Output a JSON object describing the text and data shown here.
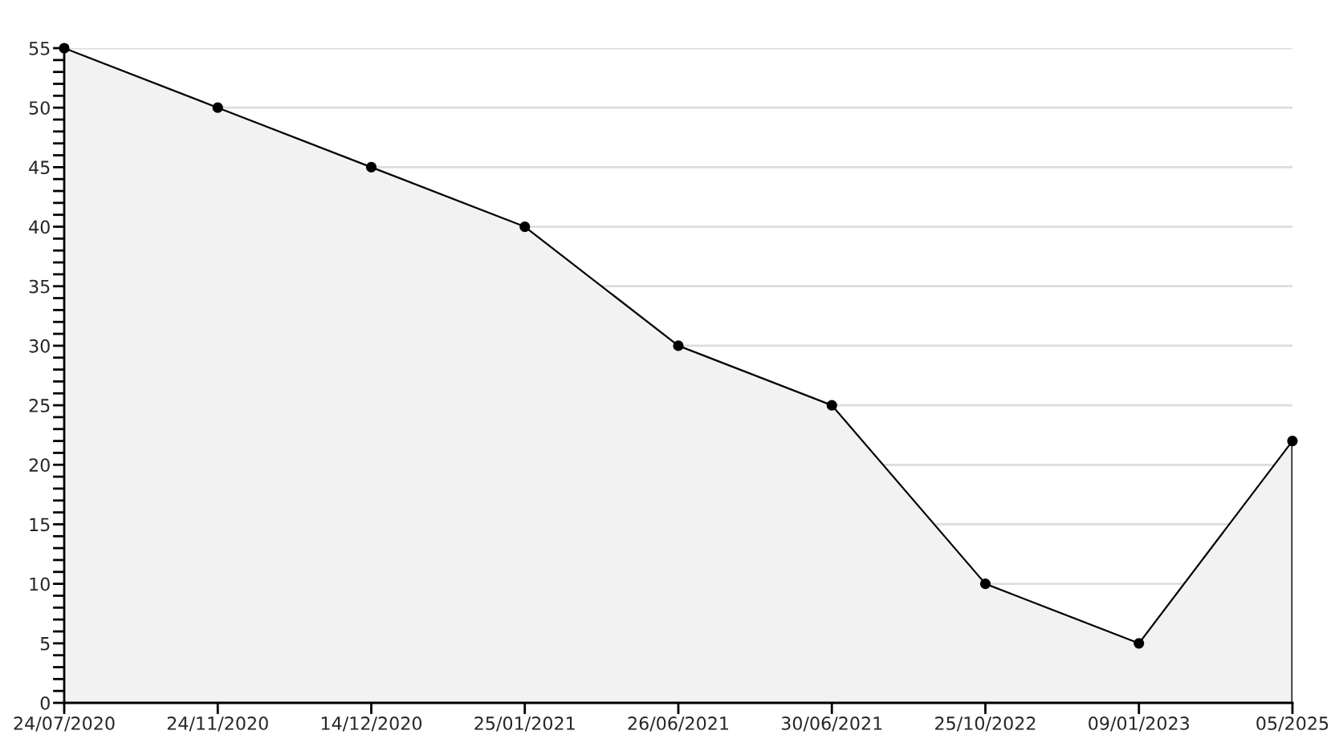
{
  "chart_data": {
    "type": "area",
    "categories": [
      "24/07/2020",
      "24/11/2020",
      "14/12/2020",
      "25/01/2021",
      "26/06/2021",
      "30/06/2021",
      "25/10/2022",
      "09/01/2023",
      "05/2025"
    ],
    "series": [
      {
        "color": "#000000",
        "values": [
          55,
          50,
          45,
          40,
          30,
          25,
          10,
          5,
          22
        ]
      }
    ],
    "ylim": [
      0,
      55
    ],
    "yticks": [
      0,
      {
        "value": 1,
        "label": null
      },
      {
        "value": 2,
        "label": null
      },
      {
        "value": 3,
        "label": null
      },
      {
        "value": 4,
        "label": null
      },
      5,
      {
        "value": 6,
        "label": null
      },
      {
        "value": 7,
        "label": null
      },
      {
        "value": 8,
        "label": null
      },
      {
        "value": 9,
        "label": null
      },
      10,
      {
        "value": 11,
        "label": null
      },
      {
        "value": 12,
        "label": null
      },
      {
        "value": 13,
        "label": null
      },
      {
        "value": 14,
        "label": null
      },
      15,
      {
        "value": 16,
        "label": null
      },
      {
        "value": 17,
        "label": null
      },
      {
        "value": 18,
        "label": null
      },
      {
        "value": 19,
        "label": null
      },
      20,
      {
        "value": 21,
        "label": null
      },
      {
        "value": 22,
        "label": null
      },
      {
        "value": 23,
        "label": null
      },
      {
        "value": 24,
        "label": null
      },
      25,
      {
        "value": 26,
        "label": null
      },
      {
        "value": 27,
        "label": null
      },
      {
        "value": 28,
        "label": null
      },
      {
        "value": 29,
        "label": null
      },
      30,
      {
        "value": 31,
        "label": null
      },
      {
        "value": 32,
        "label": null
      },
      {
        "value": 33,
        "label": null
      },
      {
        "value": 34,
        "label": null
      },
      35,
      {
        "value": 36,
        "label": null
      },
      {
        "value": 37,
        "label": null
      },
      {
        "value": 38,
        "label": null
      },
      {
        "value": 39,
        "label": null
      },
      40,
      {
        "value": 41,
        "label": null
      },
      {
        "value": 42,
        "label": null
      },
      {
        "value": 43,
        "label": null
      },
      {
        "value": 44,
        "label": null
      },
      45,
      {
        "value": 46,
        "label": null
      },
      {
        "value": 47,
        "label": null
      },
      {
        "value": 48,
        "label": null
      },
      {
        "value": 49,
        "label": null
      },
      50,
      {
        "value": 51,
        "label": null
      },
      {
        "value": 52,
        "label": null
      },
      {
        "value": 53,
        "label": null
      },
      {
        "value": 54,
        "label": null
      },
      55
    ],
    "grid": "y",
    "marker": "circle",
    "line_style": "solid"
  }
}
